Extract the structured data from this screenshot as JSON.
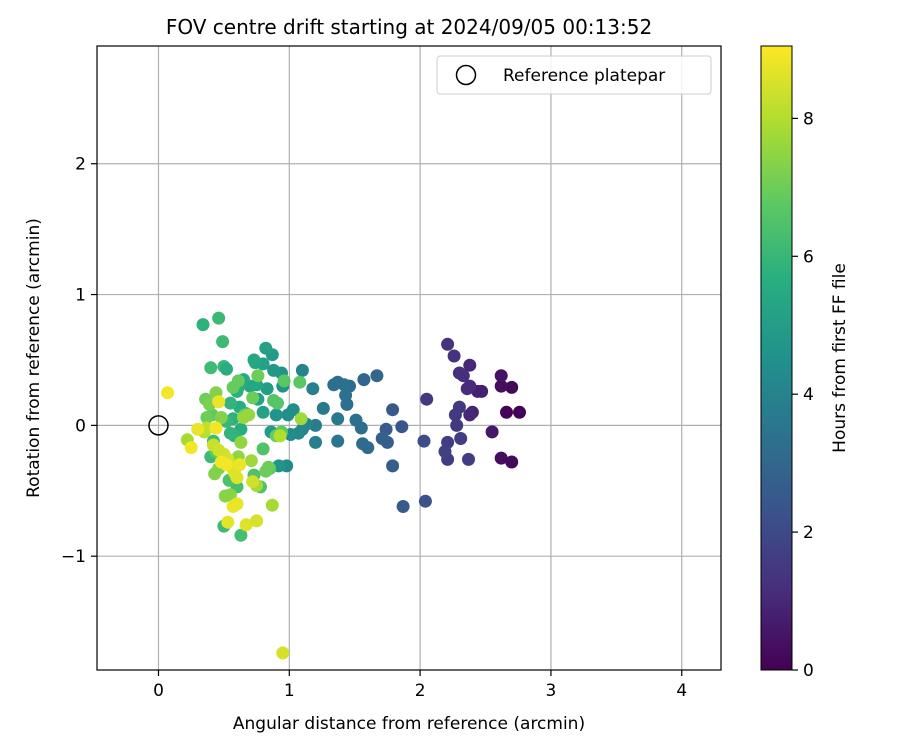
{
  "chart_data": {
    "type": "scatter",
    "title": "FOV centre drift starting at 2024/09/05 00:13:52",
    "xlabel": "Angular distance from reference (arcmin)",
    "ylabel": "Rotation from reference (arcmin)",
    "xlim": [
      -0.47,
      4.3
    ],
    "ylim": [
      -1.87,
      2.9
    ],
    "xticks": [
      0,
      1,
      2,
      3,
      4
    ],
    "yticks": [
      -1,
      0,
      1,
      2
    ],
    "xtick_labels": [
      "0",
      "1",
      "2",
      "3",
      "4"
    ],
    "ytick_labels": [
      "−1",
      "0",
      "1",
      "2"
    ],
    "grid": true,
    "legend": {
      "position": "top-right",
      "entries": [
        {
          "label": "Reference platepar",
          "marker": "open-circle"
        }
      ]
    },
    "reference_point": {
      "x": 0,
      "y": 0
    },
    "colorbar": {
      "label": "Hours from first FF file",
      "colormap": "viridis",
      "range": [
        0,
        9.05
      ],
      "ticks": [
        0,
        2,
        4,
        6,
        8
      ],
      "tick_labels": [
        "0",
        "2",
        "4",
        "6",
        "8"
      ]
    },
    "points": [
      [
        2.66,
        0.1,
        0.05
      ],
      [
        2.76,
        0.1,
        0.05
      ],
      [
        2.7,
        0.29,
        0.2
      ],
      [
        2.62,
        0.3,
        0.3
      ],
      [
        2.62,
        0.38,
        0.4
      ],
      [
        2.62,
        -0.25,
        0.3
      ],
      [
        2.7,
        -0.28,
        0.2
      ],
      [
        2.55,
        -0.05,
        0.6
      ],
      [
        2.47,
        0.26,
        0.8
      ],
      [
        2.44,
        0.26,
        0.8
      ],
      [
        2.4,
        0.1,
        0.9
      ],
      [
        2.38,
        0.08,
        1.0
      ],
      [
        2.38,
        0.46,
        1.0
      ],
      [
        2.38,
        0.3,
        1.1
      ],
      [
        2.36,
        0.28,
        1.1
      ],
      [
        2.33,
        0.38,
        1.2
      ],
      [
        2.3,
        0.4,
        1.2
      ],
      [
        2.26,
        0.53,
        1.3
      ],
      [
        2.21,
        0.62,
        1.3
      ],
      [
        2.3,
        0.14,
        1.5
      ],
      [
        2.27,
        0.08,
        1.5
      ],
      [
        2.28,
        0.0,
        1.5
      ],
      [
        2.21,
        -0.13,
        1.6
      ],
      [
        2.21,
        -0.26,
        1.6
      ],
      [
        2.19,
        -0.2,
        1.7
      ],
      [
        2.37,
        -0.26,
        1.6
      ],
      [
        2.31,
        -0.1,
        1.6
      ],
      [
        2.05,
        0.2,
        1.5
      ],
      [
        2.03,
        -0.12,
        2.1
      ],
      [
        2.04,
        -0.58,
        2.2
      ],
      [
        1.87,
        -0.62,
        2.6
      ],
      [
        1.86,
        -0.01,
        2.4
      ],
      [
        1.79,
        0.12,
        2.5
      ],
      [
        1.79,
        -0.31,
        2.7
      ],
      [
        1.74,
        -0.03,
        2.6
      ],
      [
        1.75,
        -0.13,
        2.7
      ],
      [
        1.71,
        -0.1,
        2.8
      ],
      [
        1.67,
        0.38,
        3.0
      ],
      [
        1.57,
        0.35,
        3.0
      ],
      [
        1.56,
        -0.14,
        3.1
      ],
      [
        1.6,
        -0.17,
        3.1
      ],
      [
        1.55,
        -0.02,
        3.2
      ],
      [
        1.51,
        0.04,
        3.3
      ],
      [
        1.46,
        0.3,
        3.1
      ],
      [
        1.44,
        0.16,
        3.3
      ],
      [
        1.43,
        0.23,
        3.4
      ],
      [
        1.42,
        0.31,
        3.4
      ],
      [
        1.37,
        0.33,
        3.2
      ],
      [
        1.34,
        0.31,
        3.3
      ],
      [
        1.37,
        0.05,
        3.6
      ],
      [
        1.37,
        -0.12,
        3.5
      ],
      [
        1.26,
        0.13,
        3.7
      ],
      [
        1.2,
        0.0,
        3.8
      ],
      [
        1.2,
        -0.13,
        3.9
      ],
      [
        1.18,
        0.28,
        3.9
      ],
      [
        1.1,
        0.42,
        4.0
      ],
      [
        1.13,
        0.01,
        4.1
      ],
      [
        1.1,
        -0.03,
        4.1
      ],
      [
        1.07,
        -0.06,
        4.2
      ],
      [
        1.01,
        -0.07,
        4.3
      ],
      [
        1.03,
        0.12,
        4.4
      ],
      [
        0.99,
        0.08,
        4.4
      ],
      [
        0.98,
        -0.31,
        4.3
      ],
      [
        0.95,
        0.3,
        4.6
      ],
      [
        0.94,
        0.4,
        4.6
      ],
      [
        0.92,
        -0.31,
        4.7
      ],
      [
        0.9,
        0.08,
        4.7
      ],
      [
        0.88,
        0.42,
        4.8
      ],
      [
        0.87,
        0.54,
        4.9
      ],
      [
        0.86,
        -0.05,
        4.9
      ],
      [
        0.83,
        0.28,
        5.0
      ],
      [
        0.82,
        0.59,
        5.1
      ],
      [
        0.8,
        0.47,
        5.1
      ],
      [
        0.8,
        0.1,
        5.2
      ],
      [
        0.76,
        0.2,
        5.2
      ],
      [
        0.75,
        0.31,
        5.3
      ],
      [
        0.74,
        0.48,
        5.3
      ],
      [
        0.73,
        0.5,
        5.4
      ],
      [
        0.7,
        0.3,
        5.4
      ],
      [
        0.67,
        0.09,
        5.5
      ],
      [
        0.65,
        0.35,
        5.5
      ],
      [
        0.63,
        -0.03,
        5.6
      ],
      [
        0.62,
        0.14,
        5.6
      ],
      [
        0.61,
        0.29,
        5.7
      ],
      [
        0.6,
        0.26,
        5.7
      ],
      [
        0.58,
        -0.08,
        5.8
      ],
      [
        0.57,
        0.05,
        5.8
      ],
      [
        0.55,
        -0.06,
        5.9
      ],
      [
        0.55,
        0.17,
        5.9
      ],
      [
        0.52,
        0.03,
        6.0
      ],
      [
        0.5,
        0.45,
        6.0
      ],
      [
        0.49,
        0.64,
        6.1
      ],
      [
        0.46,
        0.82,
        6.1
      ],
      [
        0.4,
        0.44,
        6.2
      ],
      [
        0.34,
        0.77,
        5.8
      ],
      [
        0.52,
        0.43,
        5.6
      ],
      [
        0.4,
        -0.24,
        6.1
      ],
      [
        0.42,
        -0.12,
        6.2
      ],
      [
        0.5,
        -0.77,
        6.1
      ],
      [
        0.63,
        -0.84,
        6.3
      ],
      [
        0.6,
        -0.47,
        6.3
      ],
      [
        0.54,
        -0.42,
        6.4
      ],
      [
        0.73,
        -0.38,
        6.4
      ],
      [
        0.78,
        -0.47,
        6.5
      ],
      [
        0.8,
        -0.18,
        6.5
      ],
      [
        0.85,
        -0.33,
        6.6
      ],
      [
        0.88,
        0.19,
        6.6
      ],
      [
        0.91,
        0.17,
        6.6
      ],
      [
        0.96,
        0.34,
        6.7
      ],
      [
        1.08,
        0.33,
        6.7
      ],
      [
        0.94,
        -0.05,
        6.8
      ],
      [
        0.93,
        -0.08,
        6.9
      ],
      [
        0.9,
        -0.08,
        6.9
      ],
      [
        0.84,
        -0.32,
        7.0
      ],
      [
        0.82,
        -0.35,
        7.0
      ],
      [
        0.76,
        0.38,
        7.0
      ],
      [
        0.72,
        0.21,
        7.0
      ],
      [
        0.66,
        0.08,
        6.9
      ],
      [
        0.61,
        0.34,
        6.9
      ],
      [
        0.57,
        0.29,
        6.9
      ],
      [
        0.44,
        -0.2,
        6.8
      ],
      [
        0.41,
        0.08,
        6.8
      ],
      [
        0.37,
        0.06,
        7.0
      ],
      [
        0.36,
        0.2,
        7.0
      ],
      [
        0.39,
        0.16,
        7.2
      ],
      [
        0.44,
        0.25,
        7.3
      ],
      [
        0.48,
        0.06,
        7.3
      ],
      [
        0.46,
        -0.33,
        7.3
      ],
      [
        0.43,
        -0.37,
        7.3
      ],
      [
        0.51,
        -0.54,
        7.4
      ],
      [
        0.55,
        -0.53,
        7.4
      ],
      [
        0.61,
        -0.24,
        7.5
      ],
      [
        0.63,
        -0.13,
        7.5
      ],
      [
        0.65,
        0.06,
        7.6
      ],
      [
        0.69,
        0.08,
        7.6
      ],
      [
        0.71,
        -0.27,
        7.7
      ],
      [
        0.75,
        -0.46,
        7.8
      ],
      [
        0.87,
        -0.61,
        7.8
      ],
      [
        0.93,
        -0.08,
        8.0
      ],
      [
        1.09,
        0.05,
        7.7
      ],
      [
        0.22,
        -0.11,
        7.8
      ],
      [
        0.35,
        -0.05,
        8.0
      ],
      [
        0.37,
        -0.02,
        8.2
      ],
      [
        0.42,
        -0.15,
        8.3
      ],
      [
        0.46,
        -0.19,
        8.4
      ],
      [
        0.5,
        -0.22,
        8.4
      ],
      [
        0.53,
        -0.26,
        8.5
      ],
      [
        0.56,
        -0.32,
        8.5
      ],
      [
        0.58,
        -0.36,
        8.6
      ],
      [
        0.6,
        -0.4,
        8.6
      ],
      [
        0.57,
        -0.62,
        8.8
      ],
      [
        0.6,
        -0.6,
        8.8
      ],
      [
        0.53,
        -0.74,
        8.7
      ],
      [
        0.67,
        -0.76,
        8.6
      ],
      [
        0.75,
        -0.73,
        8.5
      ],
      [
        0.72,
        -0.43,
        8.4
      ],
      [
        0.46,
        0.18,
        8.8
      ],
      [
        0.3,
        -0.03,
        8.8
      ],
      [
        0.25,
        -0.17,
        8.9
      ],
      [
        0.07,
        0.25,
        8.9
      ],
      [
        0.95,
        -1.74,
        8.5
      ],
      [
        0.52,
        -0.3,
        8.9
      ],
      [
        0.48,
        -0.28,
        8.9
      ],
      [
        0.62,
        -0.3,
        8.8
      ],
      [
        0.44,
        -0.02,
        8.9
      ]
    ]
  }
}
